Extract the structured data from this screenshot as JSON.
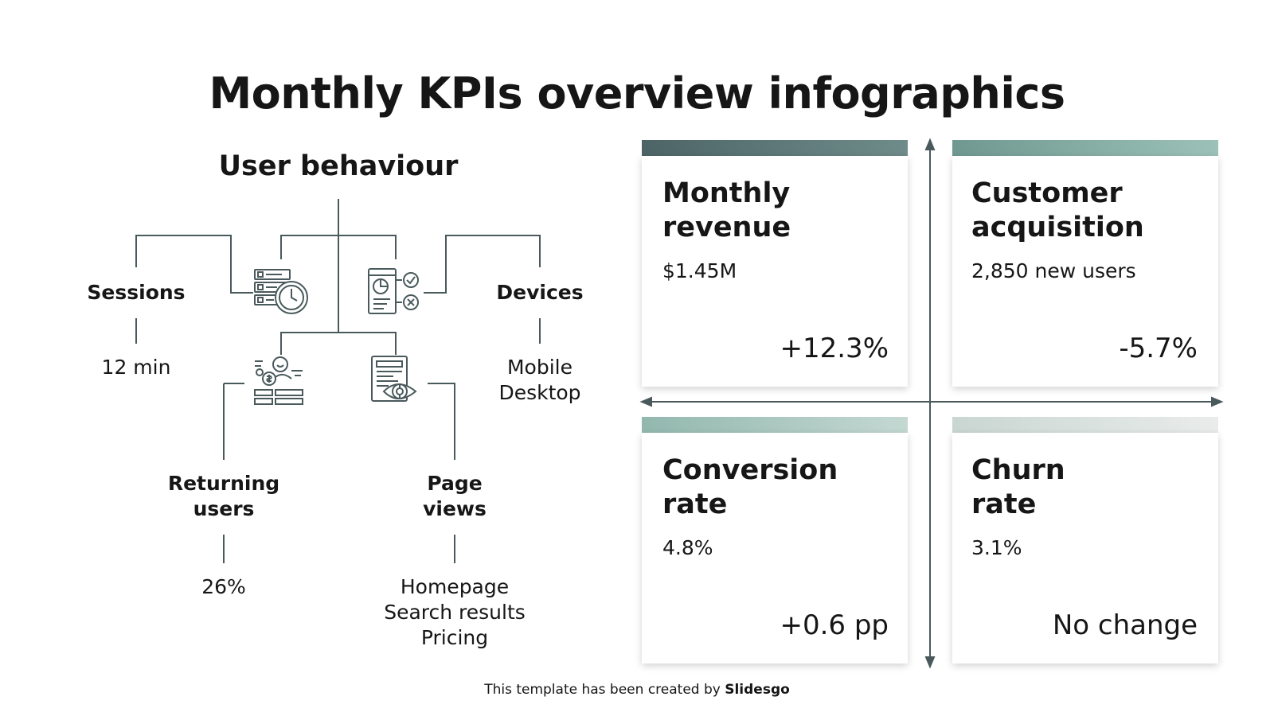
{
  "title": "Monthly KPIs overview infographics",
  "user_behaviour": {
    "heading": "User behaviour",
    "sessions": {
      "label": "Sessions",
      "value": "12 min"
    },
    "devices": {
      "label": "Devices",
      "values": [
        "Mobile",
        "Desktop"
      ]
    },
    "returning_users": {
      "label_lines": [
        "Returning",
        "users"
      ],
      "value": "26%"
    },
    "page_views": {
      "label_lines": [
        "Page",
        "views"
      ],
      "values": [
        "Homepage",
        "Search results",
        "Pricing"
      ]
    },
    "icons": [
      "server-clock-icon",
      "report-check-icon",
      "customer-money-icon",
      "document-eye-icon"
    ]
  },
  "kpis": [
    {
      "title_lines": [
        "Monthly",
        "revenue"
      ],
      "value": "$1.45M",
      "change": "+12.3%"
    },
    {
      "title_lines": [
        "Customer",
        "acquisition"
      ],
      "value": "2,850 new users",
      "change": "-5.7%"
    },
    {
      "title_lines": [
        "Conversion",
        "rate"
      ],
      "value": "4.8%",
      "change": "+0.6 pp"
    },
    {
      "title_lines": [
        "Churn",
        "rate"
      ],
      "value": "3.1%",
      "change": "No change"
    }
  ],
  "colors": {
    "line": "#4a5a5c",
    "bar_1": [
      "#4d6466",
      "#6e8c8a"
    ],
    "bar_2": [
      "#6f9890",
      "#9cc2b8"
    ],
    "bar_3": [
      "#92b8ae",
      "#c4d8d2"
    ],
    "bar_4": [
      "#c9d6d2",
      "#e9eceb"
    ]
  },
  "footer": {
    "prefix": "This template has been created by",
    "brand": "Slidesgo"
  }
}
